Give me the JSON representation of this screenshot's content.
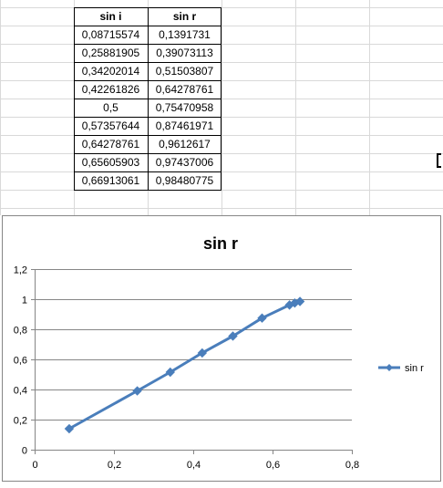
{
  "table": {
    "headers": [
      "sin i",
      "sin r"
    ],
    "rows": [
      [
        "0,08715574",
        "0,1391731"
      ],
      [
        "0,25881905",
        "0,39073113"
      ],
      [
        "0,34202014",
        "0,51503807"
      ],
      [
        "0,42261826",
        "0,64278761"
      ],
      [
        "0,5",
        "0,75470958"
      ],
      [
        "0,57357644",
        "0,87461971"
      ],
      [
        "0,64278761",
        "0,9612617"
      ],
      [
        "0,65605903",
        "0,97437006"
      ],
      [
        "0,66913061",
        "0,98480775"
      ]
    ]
  },
  "chart_data": {
    "type": "scatter",
    "title": "sin r",
    "xlabel": "",
    "ylabel": "",
    "xlim": [
      0,
      0.8
    ],
    "ylim": [
      0,
      1.2
    ],
    "x_ticks": [
      "0",
      "0,2",
      "0,4",
      "0,6",
      "0,8"
    ],
    "y_ticks": [
      "0",
      "0,2",
      "0,4",
      "0,6",
      "0,8",
      "1",
      "1,2"
    ],
    "grid": true,
    "legend_position": "right",
    "marker": "diamond",
    "line": "straight",
    "series_color": "#4a7ebb",
    "series": [
      {
        "name": "sin r",
        "x": [
          0.08715574,
          0.25881905,
          0.34202014,
          0.42261826,
          0.5,
          0.57357644,
          0.64278761,
          0.65605903,
          0.66913061
        ],
        "y": [
          0.1391731,
          0.39073113,
          0.51503807,
          0.64278761,
          0.75470958,
          0.87461971,
          0.9612617,
          0.97437006,
          0.98480775
        ]
      }
    ]
  }
}
